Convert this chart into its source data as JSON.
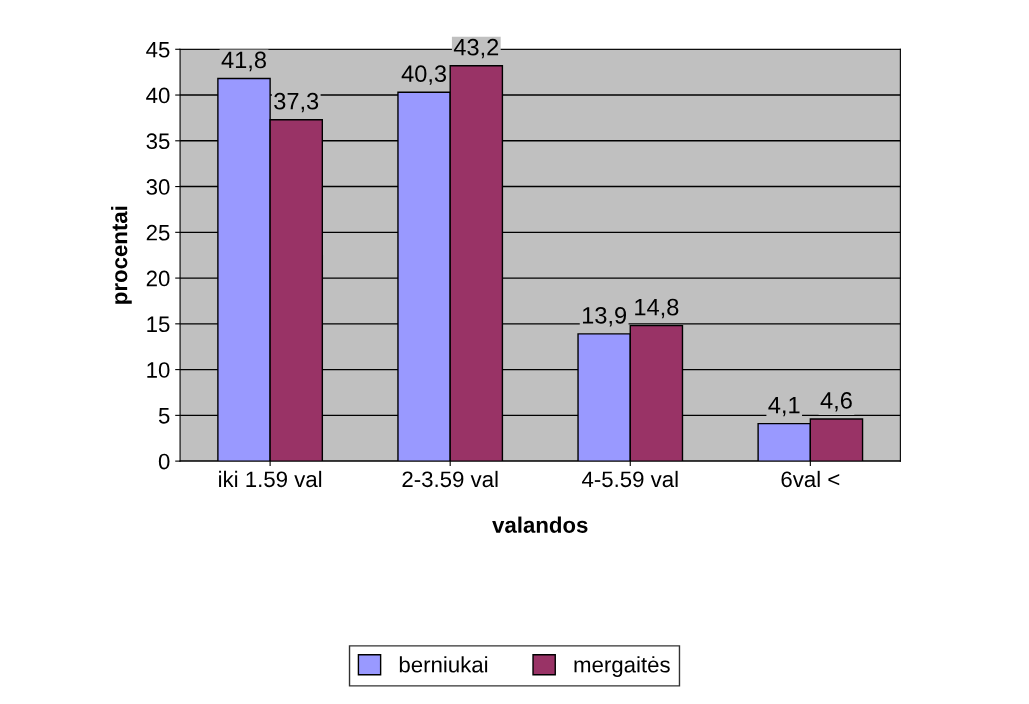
{
  "chart_data": {
    "type": "bar",
    "xlabel": "valandos",
    "ylabel": "procentai",
    "categories": [
      "iki 1.59 val",
      "2-3.59 val",
      "4-5.59 val",
      "6val <"
    ],
    "series": [
      {
        "name": "berniukai",
        "color": "#9999ff",
        "values": [
          41.8,
          40.3,
          13.9,
          4.1
        ],
        "value_labels": [
          "41,8",
          "40,3",
          "13,9",
          "4,1"
        ]
      },
      {
        "name": "mergaitės",
        "color": "#993366",
        "values": [
          37.3,
          43.2,
          14.8,
          4.6
        ],
        "value_labels": [
          "37,3",
          "43,2",
          "14,8",
          "4,6"
        ]
      }
    ],
    "ylim": [
      0,
      45
    ],
    "yticks": [
      0,
      5,
      10,
      15,
      20,
      25,
      30,
      35,
      40,
      45
    ],
    "grid": "y",
    "legend": "bottom"
  }
}
